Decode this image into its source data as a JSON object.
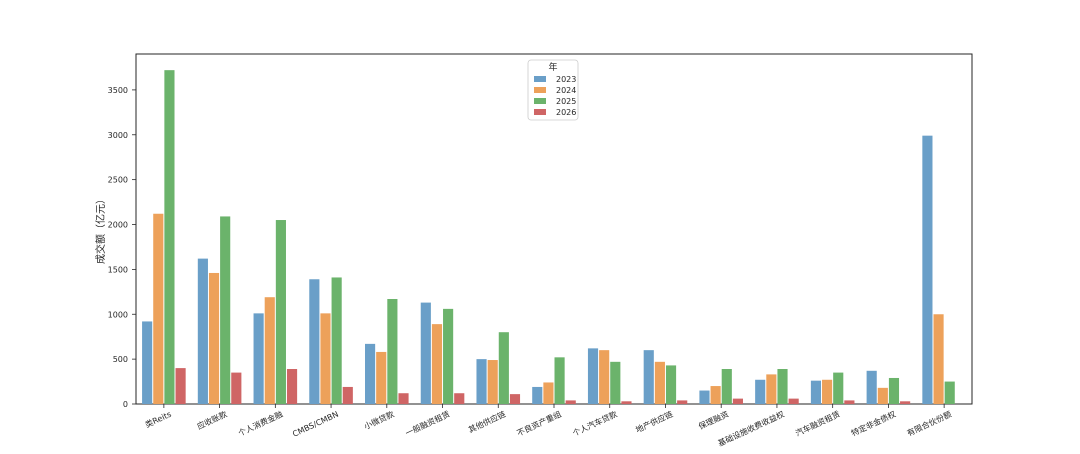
{
  "chart_data": {
    "type": "bar",
    "title": "",
    "xlabel": "",
    "ylabel": "成交额（亿元）",
    "ylim": [
      0,
      3900
    ],
    "yticks": [
      0,
      500,
      1000,
      1500,
      2000,
      2500,
      3000,
      3500
    ],
    "grid": false,
    "legend": {
      "title": "年",
      "placement": "top-center"
    },
    "categories": [
      "类Reits",
      "应收账款",
      "个人消费金融",
      "CMBS/CMBN",
      "小微贷款",
      "一般融资租赁",
      "其他供应链",
      "不良资产重组",
      "个人汽车贷款",
      "地产供应链",
      "保理融资",
      "基础设施收费收益权",
      "汽车融资租赁",
      "特定非金债权",
      "有限合伙份额"
    ],
    "series": [
      {
        "name": "2023",
        "color": "#6a9fc8",
        "values": [
          920,
          1620,
          1010,
          1390,
          670,
          1130,
          500,
          190,
          620,
          600,
          150,
          270,
          260,
          370,
          2990
        ]
      },
      {
        "name": "2024",
        "color": "#eda15a",
        "values": [
          2120,
          1460,
          1190,
          1010,
          580,
          890,
          490,
          240,
          600,
          470,
          200,
          330,
          270,
          180,
          1000
        ]
      },
      {
        "name": "2025",
        "color": "#6bb36b",
        "values": [
          3720,
          2090,
          2050,
          1410,
          1170,
          1060,
          800,
          520,
          470,
          430,
          390,
          390,
          350,
          290,
          250
        ]
      },
      {
        "name": "2026",
        "color": "#cf6565",
        "values": [
          400,
          350,
          390,
          190,
          120,
          120,
          110,
          40,
          30,
          40,
          60,
          60,
          40,
          30,
          0
        ]
      }
    ]
  }
}
